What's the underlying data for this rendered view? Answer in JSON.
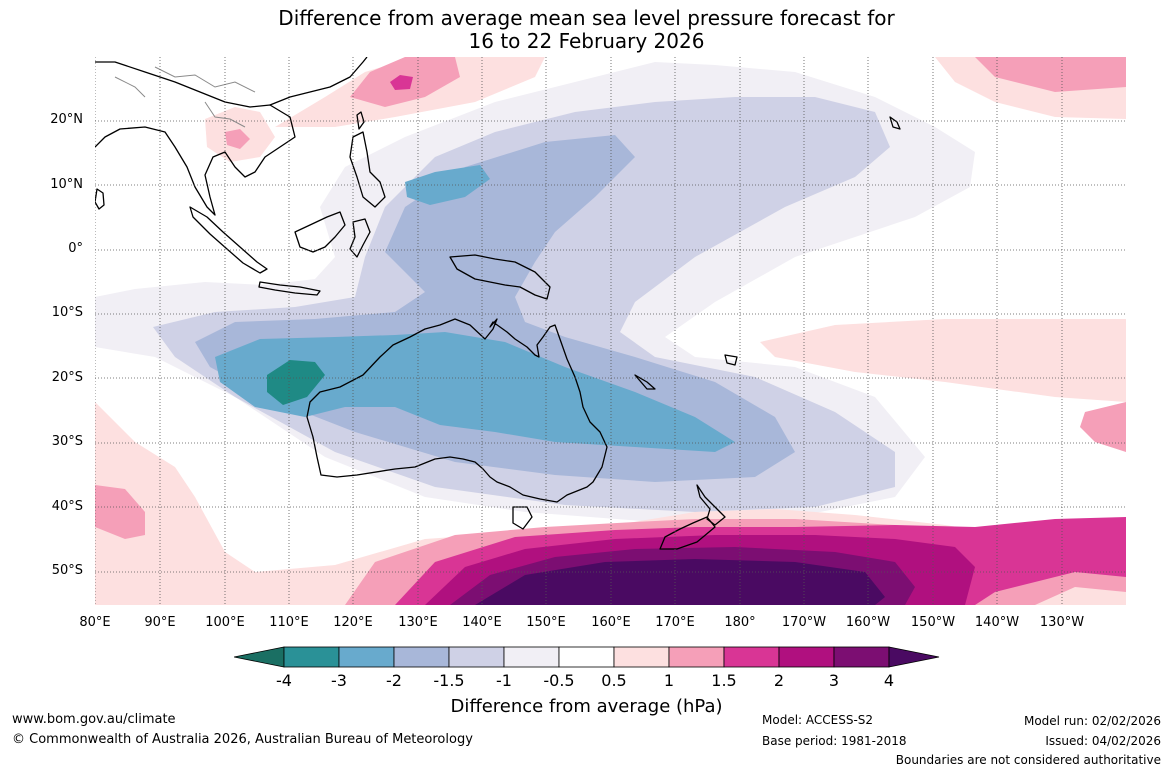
{
  "title": {
    "line1": "Difference from average mean sea level pressure forecast for",
    "line2": "16 to 22 February 2026"
  },
  "latitude_labels": [
    "20°N",
    "10°N",
    "0°",
    "10°S",
    "20°S",
    "30°S",
    "40°S",
    "50°S"
  ],
  "longitude_labels": [
    "80°E",
    "90°E",
    "100°E",
    "110°E",
    "120°E",
    "130°E",
    "140°E",
    "150°E",
    "160°E",
    "170°E",
    "180°",
    "170°W",
    "160°W",
    "150°W",
    "140°W",
    "130°W"
  ],
  "colorbar": {
    "title": "Difference from average (hPa)",
    "tick_labels": [
      "-4",
      "-3",
      "-2",
      "-1.5",
      "-1",
      "-0.5",
      "0.5",
      "1",
      "1.5",
      "2",
      "3",
      "4"
    ],
    "colors": [
      "#1a6f63",
      "#2a9197",
      "#68aacd",
      "#a8b7d9",
      "#cfd1e6",
      "#f1eff5",
      "#ffffff",
      "#fde0e0",
      "#f59fb8",
      "#d93595",
      "#b0107f",
      "#7c0e72",
      "#4a0a62"
    ]
  },
  "footer": {
    "website": "www.bom.gov.au/climate",
    "copyright": "© Commonwealth of Australia 2026, Australian Bureau of Meteorology",
    "model": "Model: ACCESS-S2",
    "base_period": "Base period: 1981-2018",
    "model_run": "Model run: 02/02/2026",
    "issued": "Issued: 04/02/2026",
    "boundaries": "Boundaries are not considered authoritative"
  }
}
